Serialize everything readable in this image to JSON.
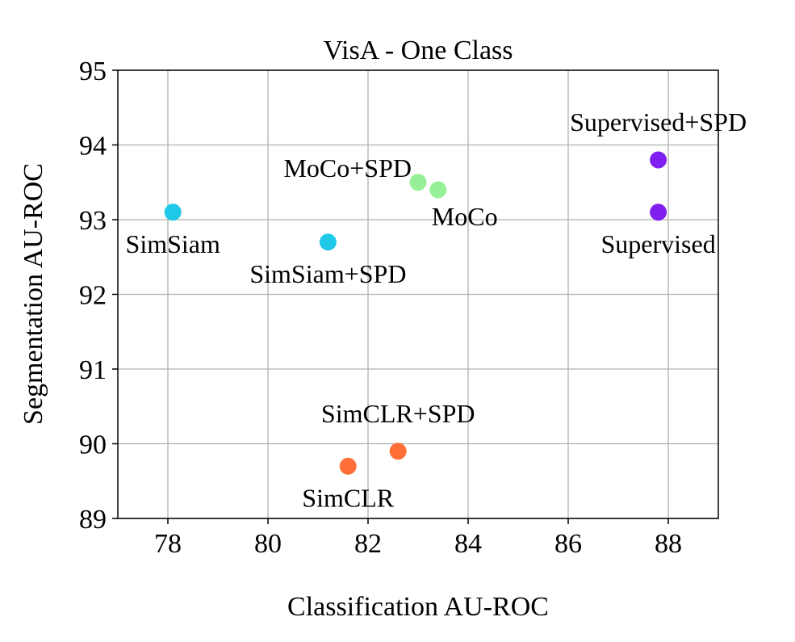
{
  "chart_data": {
    "type": "scatter",
    "title": "VisA - One Class",
    "xlabel": "Classification AU-ROC",
    "ylabel": "Segmentation AU-ROC",
    "xlim": [
      77,
      89
    ],
    "ylim": [
      89,
      95
    ],
    "xticks": [
      78,
      80,
      82,
      84,
      86,
      88
    ],
    "yticks": [
      89,
      90,
      91,
      92,
      93,
      94,
      95
    ],
    "grid": true,
    "points": [
      {
        "label": "SimSiam",
        "x": 78.1,
        "y": 93.1,
        "color": "#1ec8e6",
        "label_pos": "below"
      },
      {
        "label": "SimSiam+SPD",
        "x": 81.2,
        "y": 92.7,
        "color": "#1ec8e6",
        "label_pos": "below"
      },
      {
        "label": "MoCo+SPD",
        "x": 83.0,
        "y": 93.5,
        "color": "#96f096",
        "label_pos": "upper-left"
      },
      {
        "label": "MoCo",
        "x": 83.4,
        "y": 93.4,
        "color": "#96f096",
        "label_pos": "below-right"
      },
      {
        "label": "Supervised+SPD",
        "x": 87.8,
        "y": 93.8,
        "color": "#8020f0",
        "label_pos": "above"
      },
      {
        "label": "Supervised",
        "x": 87.8,
        "y": 93.1,
        "color": "#8020f0",
        "label_pos": "below"
      },
      {
        "label": "SimCLR+SPD",
        "x": 82.6,
        "y": 89.9,
        "color": "#ff7038",
        "label_pos": "above"
      },
      {
        "label": "SimCLR",
        "x": 81.6,
        "y": 89.7,
        "color": "#ff7038",
        "label_pos": "below"
      }
    ]
  }
}
